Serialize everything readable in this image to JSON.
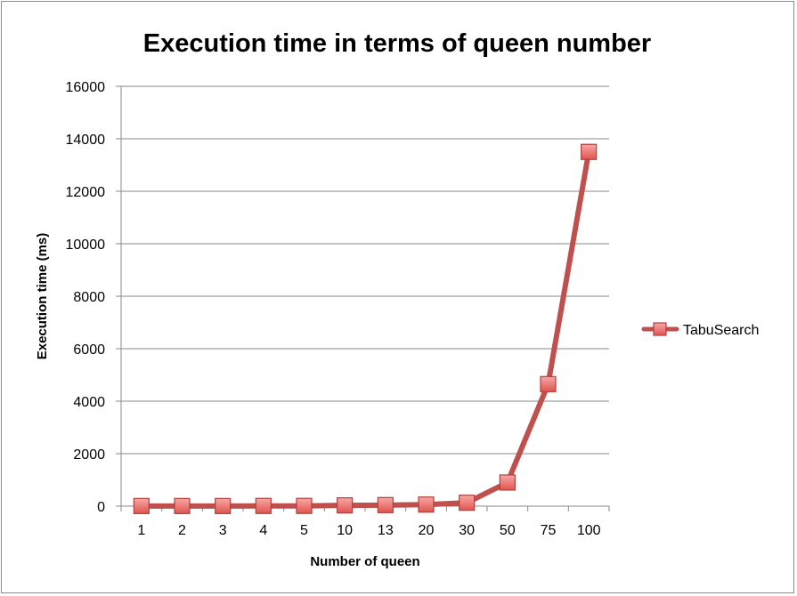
{
  "chart_data": {
    "type": "line",
    "title": "Execution time in terms of queen number",
    "xlabel": "Number of queen",
    "ylabel": "Execution time (ms)",
    "categories": [
      "1",
      "2",
      "3",
      "4",
      "5",
      "10",
      "13",
      "20",
      "30",
      "50",
      "75",
      "100"
    ],
    "series": [
      {
        "name": "TabuSearch",
        "values": [
          5,
          5,
          5,
          8,
          10,
          30,
          40,
          60,
          130,
          900,
          4650,
          13500
        ],
        "color": "#c0504d",
        "marker": "square"
      }
    ],
    "ylim": [
      0,
      16000
    ],
    "yticks": [
      0,
      2000,
      4000,
      6000,
      8000,
      10000,
      12000,
      14000,
      16000
    ],
    "grid": true,
    "legend_position": "right"
  }
}
